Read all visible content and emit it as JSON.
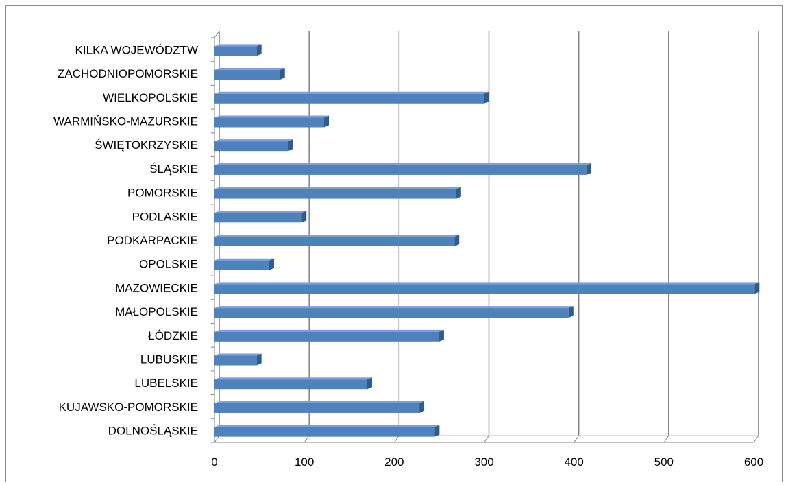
{
  "chart_data": {
    "type": "bar",
    "orientation": "horizontal",
    "categories": [
      "DOLNOŚLĄSKIE",
      "KUJAWSKO-POMORSKIE",
      "LUBELSKIE",
      "LUBUSKIE",
      "ŁÓDZKIE",
      "MAŁOPOLSKIE",
      "MAZOWIECKIE",
      "OPOLSKIE",
      "PODKARPACKIE",
      "PODLASKIE",
      "POMORSKIE",
      "ŚLĄSKIE",
      "ŚWIĘTOKRZYSKIE",
      "WARMIŃSKO-MAZURSKIE",
      "WIELKOPOLSKIE",
      "ZACHODNIOPOMORSKIE",
      "KILKA WOJEWÓDZTW"
    ],
    "values": [
      245,
      228,
      170,
      47,
      250,
      394,
      601,
      61,
      267,
      97,
      269,
      414,
      82,
      122,
      300,
      73,
      47
    ],
    "xlim": [
      0,
      600
    ],
    "xticks": [
      "0",
      "100",
      "200",
      "300",
      "400",
      "500",
      "600"
    ],
    "title": "",
    "xlabel": "",
    "ylabel": "",
    "grid": true,
    "legend": "none",
    "colors": {
      "bar_face": "#4f81bd",
      "bar_side": "#2f5b8e",
      "bar_top": "#7aa0d8",
      "grid": "#808080",
      "floor": "#bfbfbf"
    }
  }
}
